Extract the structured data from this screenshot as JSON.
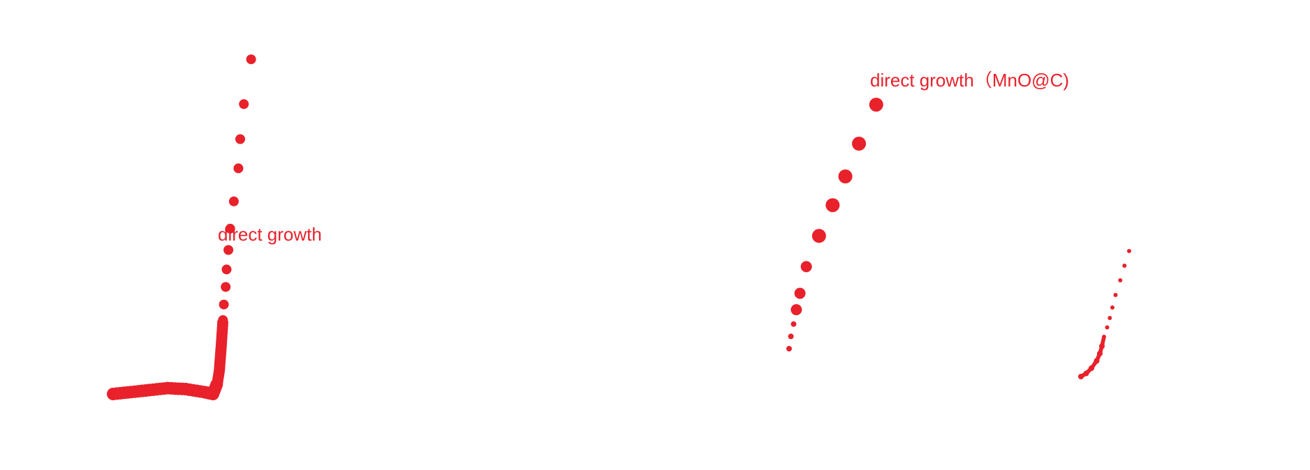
{
  "colors": {
    "series": "#e8212b",
    "background": "#ffffff"
  },
  "chart_data": [
    {
      "type": "scatter",
      "title": "",
      "xlabel": "",
      "ylabel": "",
      "grid": false,
      "annotation": "direct growth",
      "series": [
        {
          "points": [
            [
              0.0,
              0.0
            ],
            [
              0.2,
              0.01
            ],
            [
              0.4,
              0.02
            ],
            [
              0.6,
              0.03
            ],
            [
              0.8,
              0.025
            ],
            [
              1.0,
              0.01
            ],
            [
              1.1,
              0.0
            ],
            [
              1.15,
              0.06
            ],
            [
              1.17,
              0.12
            ],
            [
              1.18,
              0.18
            ],
            [
              1.19,
              0.24
            ],
            [
              1.2,
              0.31
            ],
            [
              1.21,
              0.38
            ],
            [
              1.22,
              0.46
            ],
            [
              1.24,
              0.55
            ],
            [
              1.25,
              0.64
            ],
            [
              1.27,
              0.74
            ],
            [
              1.29,
              0.85
            ],
            [
              1.33,
              0.99
            ],
            [
              1.38,
              1.16
            ],
            [
              1.4,
              1.31
            ],
            [
              1.44,
              1.49
            ],
            [
              1.52,
              1.72
            ]
          ]
        }
      ]
    },
    {
      "type": "scatter",
      "title": "",
      "xlabel": "",
      "ylabel": "",
      "grid": false,
      "annotation": "direct growth（MnO@C)",
      "series": [
        {
          "name": "direct growth（MnO@C)",
          "points": [
            [
              0.0,
              0.0
            ],
            [
              0.02,
              0.06
            ],
            [
              0.05,
              0.12
            ],
            [
              0.08,
              0.19
            ],
            [
              0.12,
              0.27
            ],
            [
              0.19,
              0.4
            ],
            [
              0.33,
              0.55
            ],
            [
              0.48,
              0.7
            ],
            [
              0.62,
              0.84
            ],
            [
              0.77,
              1.0
            ],
            [
              0.96,
              1.19
            ]
          ]
        },
        {
          "points": [
            [
              0.0,
              0.0
            ],
            [
              0.1,
              0.03
            ],
            [
              0.2,
              0.08
            ],
            [
              0.3,
              0.15
            ],
            [
              0.36,
              0.22
            ],
            [
              0.4,
              0.29
            ],
            [
              0.44,
              0.38
            ],
            [
              0.5,
              0.47
            ],
            [
              0.55,
              0.56
            ],
            [
              0.6,
              0.66
            ],
            [
              0.66,
              0.78
            ],
            [
              0.75,
              0.92
            ],
            [
              0.83,
              1.06
            ],
            [
              0.92,
              1.2
            ]
          ]
        }
      ]
    }
  ]
}
